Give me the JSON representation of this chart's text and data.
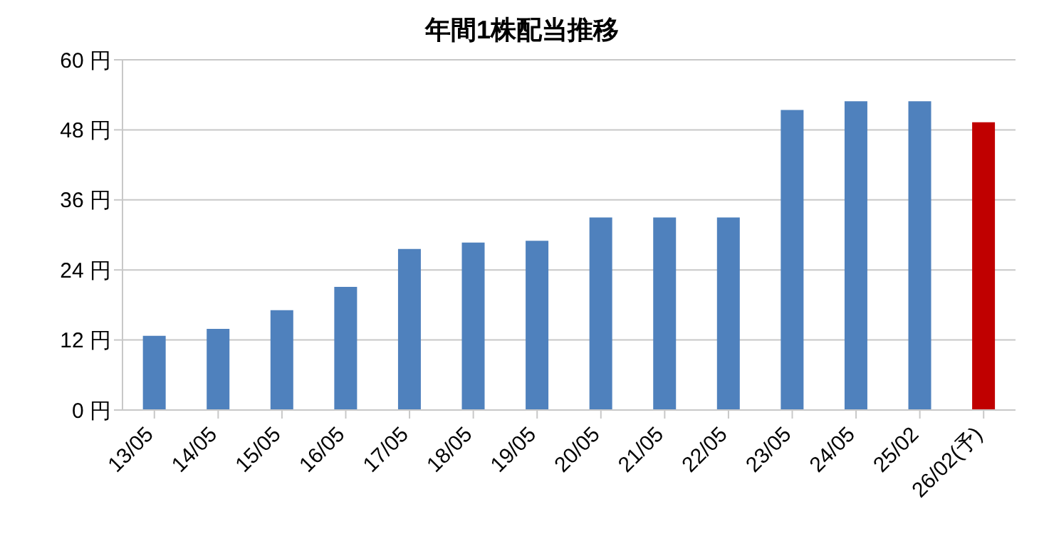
{
  "chart_data": {
    "type": "bar",
    "title": "年間1株配当推移",
    "categories": [
      "13/05",
      "14/05",
      "15/05",
      "16/05",
      "17/05",
      "18/05",
      "19/05",
      "20/05",
      "21/05",
      "22/05",
      "23/05",
      "24/05",
      "25/02",
      "26/02(予)"
    ],
    "values": [
      12.7,
      13.9,
      17.1,
      21.1,
      27.6,
      28.7,
      29,
      33,
      33,
      33,
      51.4,
      52.9,
      52.9,
      49.3
    ],
    "colors": [
      "#4f81bd",
      "#4f81bd",
      "#4f81bd",
      "#4f81bd",
      "#4f81bd",
      "#4f81bd",
      "#4f81bd",
      "#4f81bd",
      "#4f81bd",
      "#4f81bd",
      "#4f81bd",
      "#4f81bd",
      "#4f81bd",
      "#c00000"
    ],
    "ylim": [
      0,
      60
    ],
    "yticks": [
      {
        "value": 0,
        "label": "0 円"
      },
      {
        "value": 12,
        "label": "12 円"
      },
      {
        "value": 24,
        "label": "24 円"
      },
      {
        "value": 36,
        "label": "36 円"
      },
      {
        "value": 48,
        "label": "48 円"
      },
      {
        "value": 60,
        "label": "60 円"
      }
    ],
    "grid": "y"
  }
}
